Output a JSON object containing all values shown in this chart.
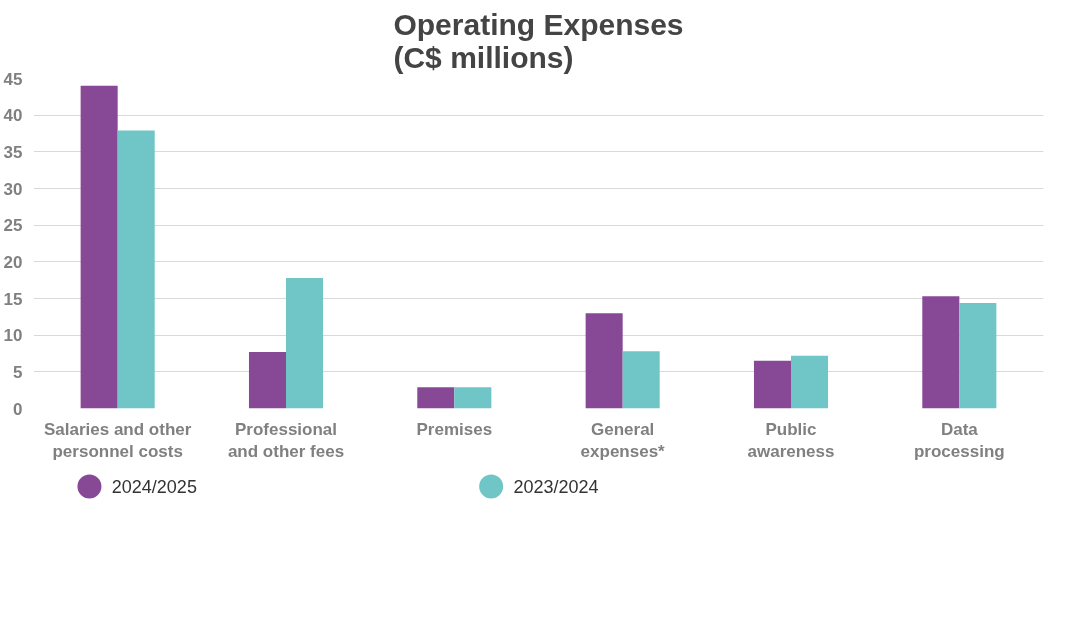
{
  "chart_data": {
    "type": "bar",
    "title": "Operating Expenses\n(C$ millions)",
    "categories": [
      "Salaries and other\npersonnel costs",
      "Professional\nand other fees",
      "Premises",
      "General\nexpenses*",
      "Public\nawareness",
      "Data\nprocessing"
    ],
    "series": [
      {
        "name": "2024/2025",
        "color": "#874896",
        "values": [
          44.0,
          7.7,
          2.9,
          13.0,
          6.5,
          15.3
        ]
      },
      {
        "name": "2023/2024",
        "color": "#70c6c6",
        "values": [
          37.9,
          17.8,
          2.9,
          7.8,
          7.2,
          14.4
        ]
      }
    ],
    "ylim": [
      0,
      45
    ],
    "yticks": [
      0,
      5,
      10,
      15,
      20,
      25,
      30,
      35,
      40,
      45
    ],
    "grid": "y",
    "legend": "bottom"
  }
}
